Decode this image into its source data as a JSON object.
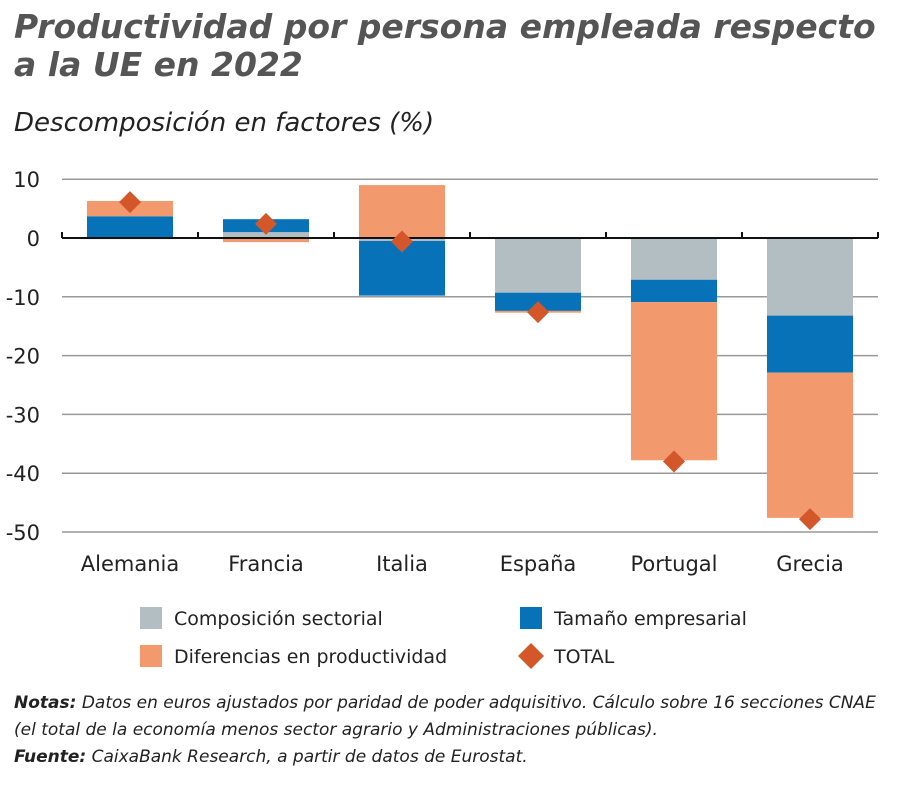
{
  "chart_data": {
    "type": "bar",
    "stacked": true,
    "title": "Productividad por persona empleada respecto a la UE en 2022",
    "subtitle": "Descomposición en factores (%)",
    "categories": [
      "Alemania",
      "Francia",
      "Italia",
      "España",
      "Portugal",
      "Grecia"
    ],
    "series": [
      {
        "name": "Composición sectorial",
        "color": "#b3bec3",
        "values": [
          -0.2,
          1.0,
          -0.5,
          -9.3,
          -7.1,
          -13.2
        ]
      },
      {
        "name": "Tamaño empresarial",
        "color": "#0872b9",
        "values": [
          3.7,
          2.2,
          -9.3,
          -3.1,
          -3.8,
          -9.7
        ]
      },
      {
        "name": "Diferencias en productividad",
        "color": "#f3996e",
        "values": [
          2.6,
          -0.7,
          9.0,
          -0.3,
          -26.9,
          -24.7
        ]
      }
    ],
    "total": {
      "name": "TOTAL",
      "color": "#d4572a",
      "values": [
        6.1,
        2.4,
        -0.6,
        -12.6,
        -38.0,
        -47.8
      ]
    },
    "ylim": [
      -50,
      10
    ],
    "yticks": [
      "10",
      "0",
      "-10",
      "-20",
      "-30",
      "-40",
      "-50"
    ],
    "grid": true,
    "legend_position": "bottom"
  },
  "notes": {
    "notas_label": "Notas:",
    "notas_text": " Datos en euros ajustados por paridad de poder adquisitivo. Cálculo sobre 16 secciones CNAE (el total de la economía menos sector agrario y Administraciones públicas).",
    "fuente_label": "Fuente:",
    "fuente_text": " CaixaBank Research, a partir de datos de Eurostat."
  }
}
